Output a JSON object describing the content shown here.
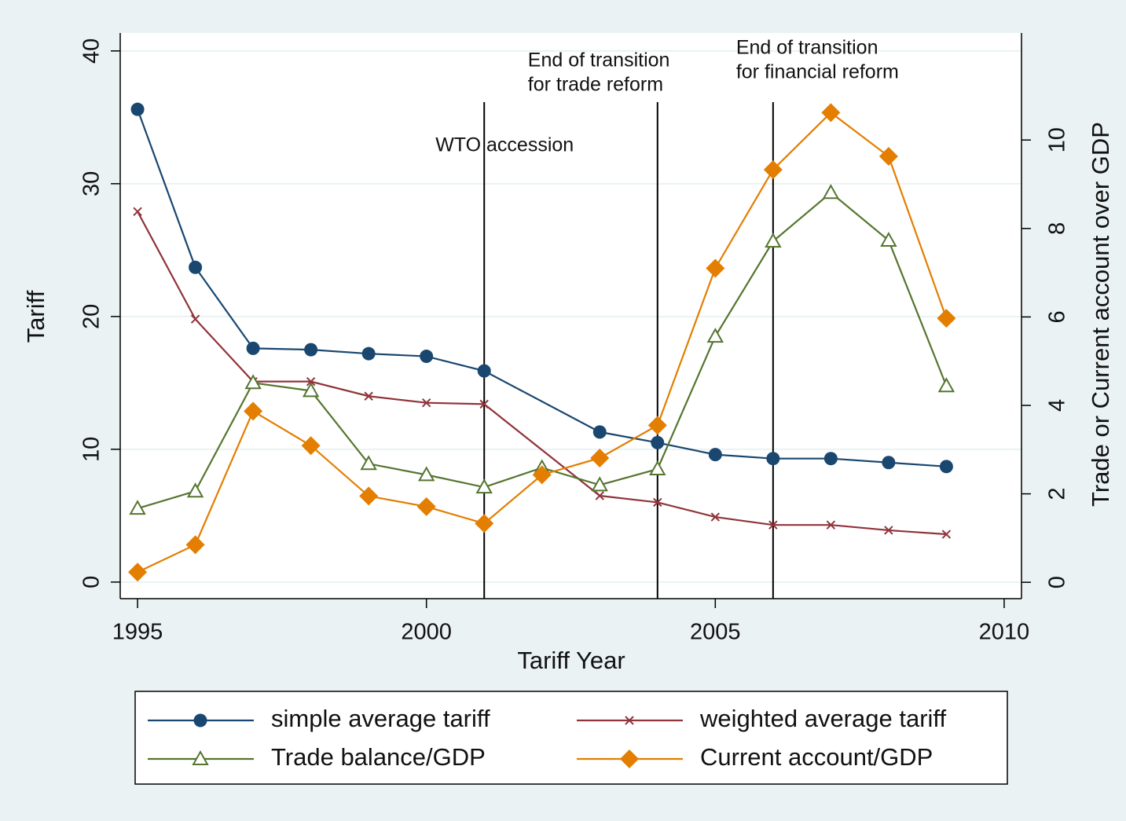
{
  "chart_data": {
    "type": "line",
    "xlabel": "Tariff Year",
    "ylabel": "Tariff",
    "y2label": "Trade or Current account over GDP",
    "xlim": [
      1994.7,
      2010.3
    ],
    "xticks": [
      1995,
      2000,
      2005,
      2010
    ],
    "ylim": [
      -1.25,
      41.35
    ],
    "yticks": [
      0,
      10,
      20,
      30,
      40
    ],
    "y2lim": [
      -0.37,
      12.42
    ],
    "y2ticks": [
      0,
      2,
      4,
      6,
      8,
      10
    ],
    "grid": true,
    "legend": "bottom",
    "series": [
      {
        "name": "simple average tariff",
        "color": "#1a476f",
        "marker": "circle",
        "x": [
          1995,
          1996,
          1997,
          1998,
          1999,
          2000,
          2001,
          2003,
          2004,
          2005,
          2006,
          2007,
          2008,
          2009
        ],
        "values": [
          35.6,
          23.7,
          17.6,
          17.5,
          17.2,
          17.0,
          15.9,
          11.3,
          10.5,
          9.6,
          9.3,
          9.3,
          9.0,
          8.7
        ]
      },
      {
        "name": "weighted average tariff",
        "color": "#90353b",
        "marker": "x",
        "x": [
          1995,
          1996,
          1997,
          1998,
          1999,
          2000,
          2001,
          2003,
          2004,
          2005,
          2006,
          2007,
          2008,
          2009
        ],
        "values": [
          27.9,
          19.8,
          15.1,
          15.1,
          14.0,
          13.5,
          13.4,
          6.5,
          6.0,
          4.9,
          4.3,
          4.3,
          3.9,
          3.6
        ]
      },
      {
        "name": "Trade balance/GDP",
        "color": "#55752f",
        "marker": "triangle",
        "axis": "y2",
        "x": [
          1995,
          1996,
          1997,
          1998,
          1999,
          2000,
          2001,
          2002,
          2003,
          2004,
          2005,
          2006,
          2007,
          2008,
          2009
        ],
        "values": [
          1.67,
          2.06,
          4.51,
          4.33,
          2.68,
          2.43,
          2.15,
          2.59,
          2.2,
          2.56,
          5.56,
          7.71,
          8.81,
          7.73,
          4.44
        ]
      },
      {
        "name": "Current account/GDP",
        "color": "#e37e00",
        "marker": "diamond",
        "axis": "y2",
        "x": [
          1995,
          1996,
          1997,
          1998,
          1999,
          2000,
          2001,
          2002,
          2003,
          2004,
          2005,
          2006,
          2007,
          2008,
          2009
        ],
        "values": [
          0.23,
          0.85,
          3.87,
          3.09,
          1.95,
          1.71,
          1.33,
          2.43,
          2.81,
          3.55,
          7.1,
          9.33,
          10.62,
          9.63,
          5.97
        ]
      }
    ],
    "annotations": [
      {
        "x": 2001,
        "lines": [
          "WTO accession"
        ]
      },
      {
        "x": 2004,
        "lines": [
          "End of transition",
          "for trade reform"
        ]
      },
      {
        "x": 2006,
        "lines": [
          "End of transition",
          "for financial reform"
        ]
      }
    ]
  }
}
